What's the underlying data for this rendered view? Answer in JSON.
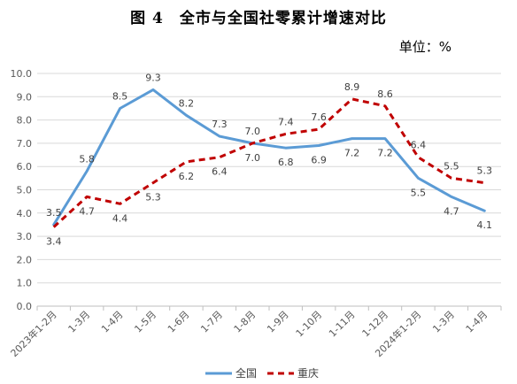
{
  "chart_data": {
    "type": "line",
    "title": "图 4　全市与全国社零累计增速对比",
    "unit_label": "单位：%",
    "categories": [
      "2023年1-2月",
      "1-3月",
      "1-4月",
      "1-5月",
      "1-6月",
      "1-7月",
      "1-8月",
      "1-9月",
      "1-10月",
      "1-11月",
      "1-12月",
      "2024年1-2月",
      "1-3月",
      "1-4月"
    ],
    "ylim": [
      0,
      10
    ],
    "yticks": [
      "0.0",
      "1.0",
      "2.0",
      "3.0",
      "4.0",
      "5.0",
      "6.0",
      "7.0",
      "8.0",
      "9.0",
      "10.0"
    ],
    "grid": true,
    "legend_position": "bottom",
    "series": [
      {
        "name": "全国",
        "color": "#5b9bd5",
        "style": "solid",
        "values": [
          3.5,
          5.8,
          8.5,
          9.3,
          8.2,
          7.3,
          7.0,
          6.8,
          6.9,
          7.2,
          7.2,
          5.5,
          4.7,
          4.1
        ],
        "labels": [
          "3.5",
          "5.8",
          "8.5",
          "9.3",
          "8.2",
          "7.3",
          "7.0",
          "6.8",
          "6.9",
          "7.2",
          "7.2",
          "5.5",
          "4.7",
          "4.1"
        ]
      },
      {
        "name": "重庆",
        "color": "#c00000",
        "style": "dashed",
        "values": [
          3.4,
          4.7,
          4.4,
          5.3,
          6.2,
          6.4,
          7.0,
          7.4,
          7.6,
          8.9,
          8.6,
          6.4,
          5.5,
          5.3
        ],
        "labels": [
          "3.4",
          "4.7",
          "4.4",
          "5.3",
          "6.2",
          "6.4",
          "7.0",
          "7.4",
          "7.6",
          "8.9",
          "8.6",
          "6.4",
          "5.5",
          "5.3"
        ]
      }
    ]
  }
}
